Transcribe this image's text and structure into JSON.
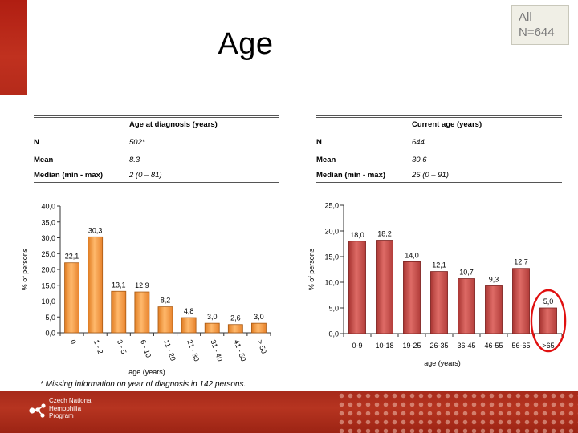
{
  "slide": {
    "title": "Age",
    "badge": {
      "line1": "All",
      "line2": "N=644"
    },
    "footnote": "* Missing information on year of diagnosis in 142 persons."
  },
  "table_left": {
    "header": "Age at diagnosis (years)",
    "rows": [
      {
        "label": "N",
        "value": "502*"
      },
      {
        "label": "Mean",
        "value": "8.3"
      },
      {
        "label": "Median (min - max)",
        "value": "2 (0 – 81)"
      }
    ]
  },
  "table_right": {
    "header": "Current age (years)",
    "rows": [
      {
        "label": "N",
        "value": "644"
      },
      {
        "label": "Mean",
        "value": "30.6"
      },
      {
        "label": "Median (min - max)",
        "value": "25 (0 – 91)"
      }
    ]
  },
  "footer": {
    "logo_lines": [
      "Czech National",
      "Hemophilia",
      "Program"
    ]
  },
  "colors": {
    "accent_red": "#b52a1a",
    "orange_bar": "#f5a04a",
    "red_bar": "#c9504c",
    "highlight_ring": "#e01010"
  },
  "chart_data": [
    {
      "type": "bar",
      "title": "",
      "xlabel": "age (years)",
      "ylabel": "% of persons",
      "ylim": [
        0,
        40
      ],
      "yticks": [
        "0,0",
        "5,0",
        "10,0",
        "15,0",
        "20,0",
        "25,0",
        "30,0",
        "35,0",
        "40,0"
      ],
      "categories": [
        "0",
        "1 - 2",
        "3 - 5",
        "6 - 10",
        "11 - 20",
        "21 - 30",
        "31 - 40",
        "41 - 50",
        "> 50"
      ],
      "values": [
        22.1,
        30.3,
        13.1,
        12.9,
        8.2,
        4.8,
        3.0,
        2.6,
        3.0
      ],
      "data_labels": [
        "22,1",
        "30,3",
        "13,1",
        "12,9",
        "8,2",
        "4,8",
        "3,0",
        "2,6",
        "3,0"
      ],
      "grid": false
    },
    {
      "type": "bar",
      "title": "",
      "xlabel": "age (years)",
      "ylabel": "% of persons",
      "ylim": [
        0,
        25
      ],
      "yticks": [
        "0,0",
        "5,0",
        "10,0",
        "15,0",
        "20,0",
        "25,0"
      ],
      "categories": [
        "0-9",
        "10-18",
        "19-25",
        "26-35",
        "36-45",
        "46-55",
        "56-65",
        ">65"
      ],
      "values": [
        18.0,
        18.2,
        14.0,
        12.1,
        10.7,
        9.3,
        12.7,
        5.0
      ],
      "data_labels": [
        "18,0",
        "18,2",
        "14,0",
        "12,1",
        "10,7",
        "9,3",
        "12,7",
        "5,0"
      ],
      "highlighted_category": ">65",
      "grid": false
    }
  ]
}
